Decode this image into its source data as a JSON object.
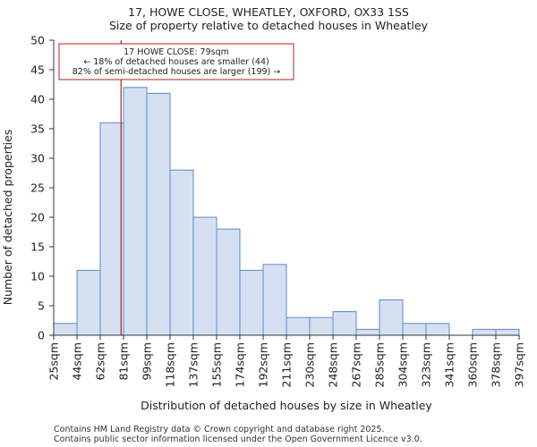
{
  "title_line1": "17, HOWE CLOSE, WHEATLEY, OXFORD, OX33 1SS",
  "title_line2": "Size of property relative to detached houses in Wheatley",
  "footer_line1": "Contains HM Land Registry data © Crown copyright and database right 2025.",
  "footer_line2": "Contains public sector information licensed under the Open Government Licence v3.0.",
  "colors": {
    "bar_fill": "#d6e0f3",
    "bar_edge": "#5b8cc6",
    "marker": "#b22222"
  },
  "chart_data": {
    "type": "bar",
    "title": "Size of property relative to detached houses in Wheatley",
    "xlabel": "Distribution of detached houses by size in Wheatley",
    "ylabel": "Number of detached properties",
    "ylim": [
      0,
      50
    ],
    "yticks": [
      0,
      5,
      10,
      15,
      20,
      25,
      30,
      35,
      40,
      45,
      50
    ],
    "bin_edges": [
      25,
      44,
      62,
      81,
      99,
      118,
      137,
      155,
      174,
      192,
      211,
      230,
      248,
      267,
      285,
      304,
      323,
      341,
      360,
      378,
      397
    ],
    "tick_labels": [
      "25sqm",
      "44sqm",
      "62sqm",
      "81sqm",
      "99sqm",
      "118sqm",
      "137sqm",
      "155sqm",
      "174sqm",
      "192sqm",
      "211sqm",
      "230sqm",
      "248sqm",
      "267sqm",
      "285sqm",
      "304sqm",
      "323sqm",
      "341sqm",
      "360sqm",
      "378sqm",
      "397sqm"
    ],
    "values": [
      2,
      11,
      36,
      42,
      41,
      28,
      20,
      18,
      11,
      12,
      3,
      3,
      4,
      1,
      6,
      2,
      2,
      0,
      1,
      1
    ],
    "marker": {
      "value": 79,
      "label_line1": "17 HOWE CLOSE: 79sqm",
      "label_line2": "← 18% of detached houses are smaller (44)",
      "label_line3": "82% of semi-detached houses are larger (199) →"
    }
  }
}
